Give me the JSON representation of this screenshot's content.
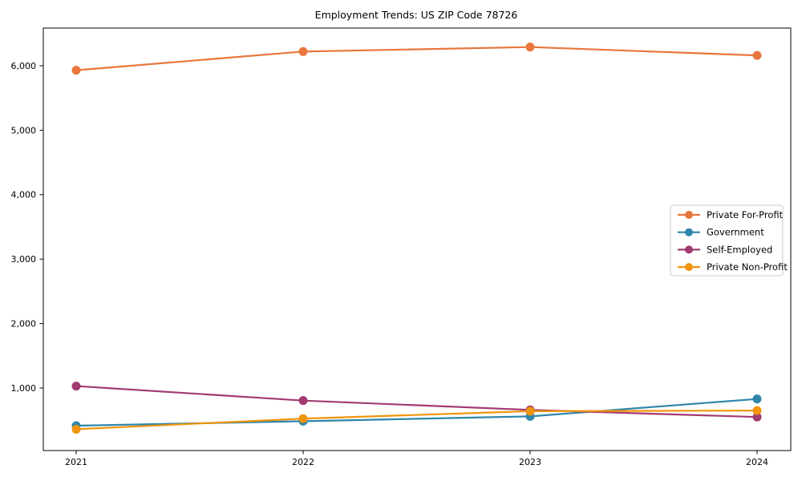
{
  "title": "Employment Trends: US ZIP Code 78726",
  "chart_data": {
    "type": "line",
    "title": "Employment Trends: US ZIP Code 78726",
    "xlabel": "",
    "ylabel": "",
    "x": [
      2021,
      2022,
      2023,
      2024
    ],
    "x_tick_labels": [
      "2021",
      "2022",
      "2023",
      "2024"
    ],
    "y_ticks": [
      1000,
      2000,
      3000,
      4000,
      5000,
      6000
    ],
    "y_tick_labels": [
      "1,000",
      "2,000",
      "3,000",
      "4,000",
      "5,000",
      "6,000"
    ],
    "ylim": [
      30,
      6610
    ],
    "grid": false,
    "legend_position": "center right",
    "marker": "o",
    "series": [
      {
        "name": "Private For-Profit",
        "color": "#E8763D",
        "values": [
          5930,
          6220,
          6290,
          6160
        ]
      },
      {
        "name": "Government",
        "color": "#2E86AB",
        "values": [
          415,
          485,
          560,
          830
        ]
      },
      {
        "name": "Self-Employed",
        "color": "#A23B72",
        "values": [
          1030,
          805,
          660,
          550
        ]
      },
      {
        "name": "Private Non-Profit",
        "color": "#F0950C",
        "values": [
          360,
          525,
          640,
          650
        ]
      }
    ]
  }
}
